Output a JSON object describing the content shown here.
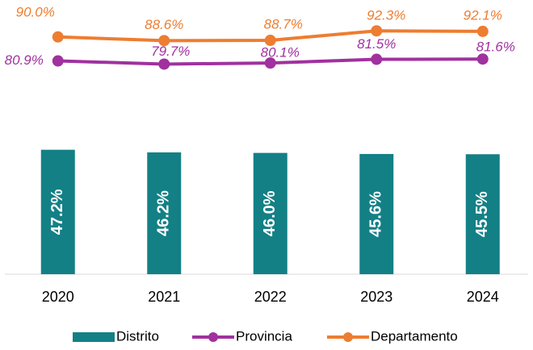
{
  "chart_data": {
    "type": "bar_line",
    "categories": [
      "2020",
      "2021",
      "2022",
      "2023",
      "2024"
    ],
    "ylim": [
      0,
      104
    ],
    "series": [
      {
        "name": "Distrito",
        "type": "bar",
        "color": "#138086",
        "values": [
          47.2,
          46.2,
          46.0,
          45.6,
          45.5
        ],
        "value_labels": [
          "47.2%",
          "46.2%",
          "46.0%",
          "45.6%",
          "45.5%"
        ]
      },
      {
        "name": "Provincia",
        "type": "line",
        "color": "#a0319f",
        "values": [
          80.9,
          79.7,
          80.1,
          81.5,
          81.6
        ],
        "value_labels": [
          "80.9%",
          "79.7%",
          "80.1%",
          "81.5%",
          "81.6%"
        ]
      },
      {
        "name": "Departamento",
        "type": "line",
        "color": "#ed7d31",
        "values": [
          90.0,
          88.6,
          88.7,
          92.3,
          92.1
        ],
        "value_labels": [
          "90.0%",
          "88.6%",
          "88.7%",
          "92.3%",
          "92.1%"
        ]
      }
    ],
    "legend": "bottom"
  }
}
